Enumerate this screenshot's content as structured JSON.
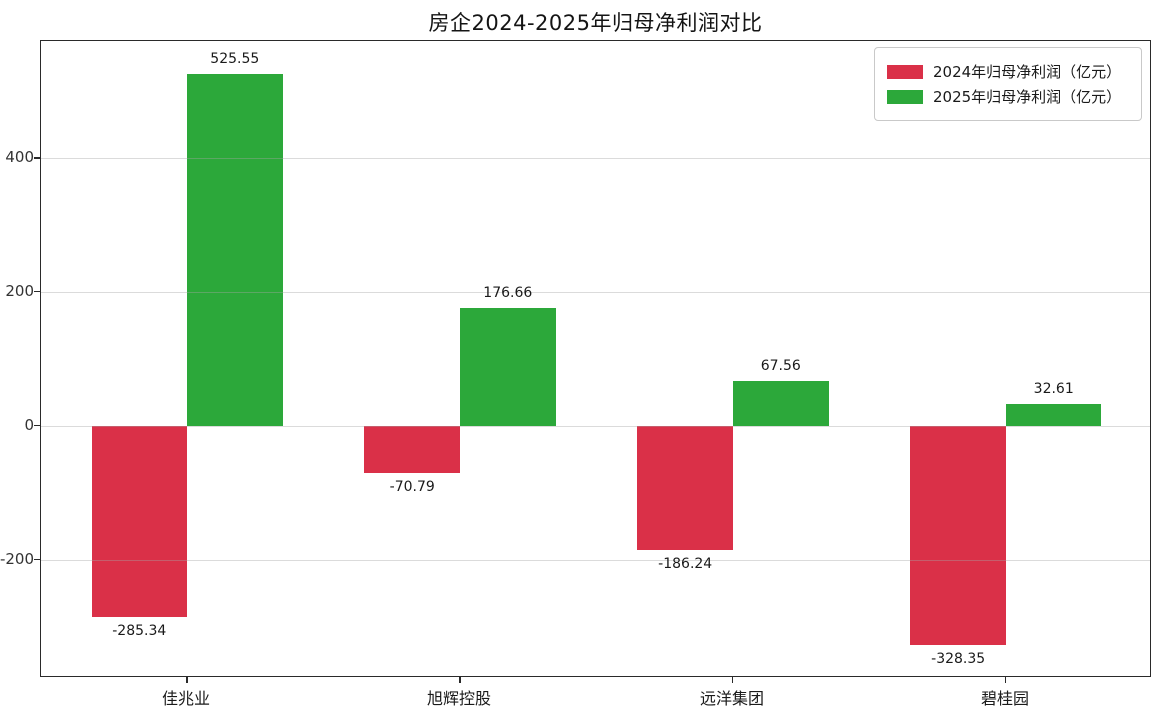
{
  "title": "房企2024-2025年归母净利润对比",
  "chart_data": {
    "type": "bar",
    "title": "房企2024-2025年归母净利润对比",
    "categories": [
      "佳兆业",
      "旭辉控股",
      "远洋集团",
      "碧桂园"
    ],
    "series": [
      {
        "name": "2024年归母净利润（亿元）",
        "color": "#da3048",
        "values": [
          -285.34,
          -70.79,
          -186.24,
          -328.35
        ]
      },
      {
        "name": "2025年归母净利润（亿元）",
        "color": "#2ca83a",
        "values": [
          525.55,
          176.66,
          67.56,
          32.61
        ]
      }
    ],
    "value_labels": [
      "-285.34",
      "-70.79",
      "-186.24",
      "-328.35",
      "525.55",
      "176.66",
      "67.56",
      "32.61"
    ],
    "ylim": [
      -377,
      575
    ],
    "yticks": [
      -200,
      0,
      200,
      400
    ],
    "ytick_labels": [
      "-200",
      "0",
      "200",
      "400"
    ],
    "grid": true,
    "grid_over_bars": true,
    "bar_width_ratio": 0.35,
    "legend_position": "upper right",
    "xlabel": "",
    "ylabel": ""
  }
}
